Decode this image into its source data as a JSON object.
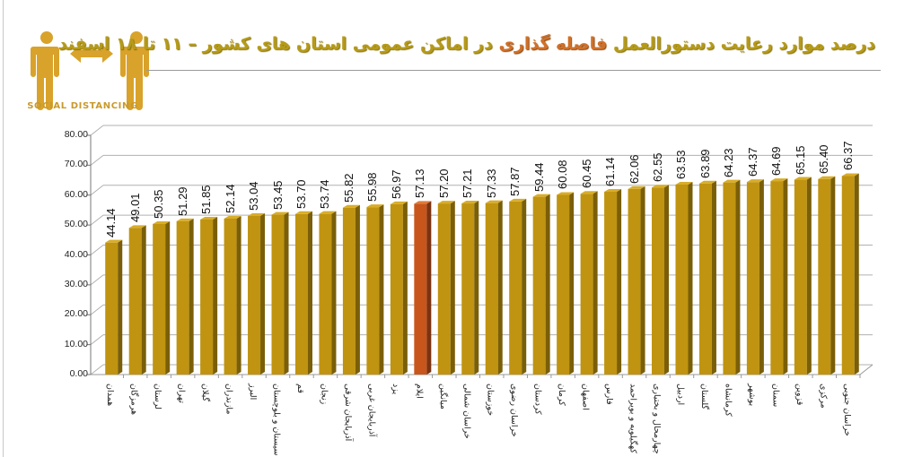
{
  "logo": {
    "text": "SOCIAL DISTANCING",
    "icon": "social-distancing-icon",
    "color": "#d9a22a"
  },
  "title": {
    "part1": "درصد موارد رعایت دستورالعمل",
    "highlight": "فاصله گذاری",
    "part2": "در اماکن عمومی استان های کشور – ۱۱ تا ۱۸ اسفند"
  },
  "colors": {
    "bar": "#c09410",
    "bar_side": "#7a5e08",
    "bar_top": "#d8ad2a",
    "highlight_bar": "#c8561c",
    "highlight_side": "#7a3210",
    "gridline": "#b0b0b0",
    "title": "#b59a1a",
    "title_highlight": "#d0702a"
  },
  "chart_data": {
    "type": "bar",
    "title": "درصد موارد رعایت دستورالعمل فاصله گذاری در اماکن عمومی استان های کشور – ۱۱ تا ۱۸ اسفند",
    "xlabel": "",
    "ylabel": "",
    "ylim": [
      0,
      80
    ],
    "yticks": [
      "0.00",
      "10.00",
      "20.00",
      "30.00",
      "40.00",
      "50.00",
      "60.00",
      "70.00",
      "80.00"
    ],
    "grid": true,
    "legend": null,
    "highlight_index": 13,
    "categories": [
      "همدان",
      "هرمزگان",
      "لرستان",
      "تهران",
      "گیلان",
      "مازندران",
      "البرز",
      "سیستان و بلوچستان",
      "قم",
      "زنجان",
      "آذربایجان شرقی",
      "آذربایجان غربی",
      "یزد",
      "ایلام",
      "میانگین",
      "خراسان شمالی",
      "خوزستان",
      "خراسان رضوی",
      "کردستان",
      "کرمان",
      "اصفهان",
      "فارس",
      "کهگیلویه و بویراحمد",
      "چهارمحال و بختیاری",
      "اردبیل",
      "گلستان",
      "کرمانشاه",
      "بوشهر",
      "سمنان",
      "قزوین",
      "مرکزی",
      "خراسان جنوبی"
    ],
    "values": [
      44.14,
      49.01,
      50.35,
      51.29,
      51.85,
      52.14,
      53.04,
      53.45,
      53.7,
      53.74,
      55.82,
      55.98,
      56.97,
      57.13,
      57.2,
      57.21,
      57.33,
      57.87,
      59.44,
      60.08,
      60.45,
      61.14,
      62.06,
      62.55,
      63.53,
      63.89,
      64.23,
      64.37,
      64.69,
      65.15,
      65.4,
      66.37
    ],
    "value_labels": [
      "44.14",
      "49.01",
      "50.35",
      "51.29",
      "51.85",
      "52.14",
      "53.04",
      "53.45",
      "53.70",
      "53.74",
      "55.82",
      "55.98",
      "56.97",
      "57.13",
      "57.20",
      "57.21",
      "57.33",
      "57.87",
      "59.44",
      "60.08",
      "60.45",
      "61.14",
      "62.06",
      "62.55",
      "63.53",
      "63.89",
      "64.23",
      "64.37",
      "64.69",
      "65.15",
      "65.40",
      "66.37"
    ]
  }
}
